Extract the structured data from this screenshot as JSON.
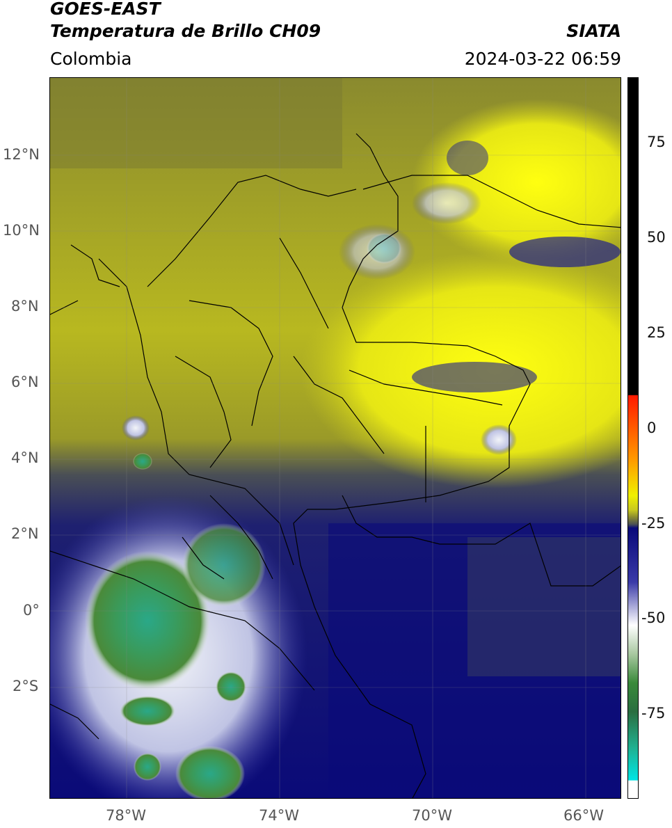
{
  "header": {
    "satellite": "GOES-EAST",
    "product": "Temperatura de Brillo CH09",
    "region": "Colombia",
    "source": "SIATA",
    "datetime": "2024-03-22 06:59"
  },
  "map": {
    "lat_labels": [
      "12°N",
      "10°N",
      "8°N",
      "6°N",
      "4°N",
      "2°N",
      "0°",
      "2°S"
    ],
    "lon_labels": [
      "78°W",
      "74°W",
      "70°W",
      "66°W"
    ]
  },
  "colorbar": {
    "tick_labels": [
      "75",
      "50",
      "25",
      "0",
      "-25",
      "-50",
      "-75"
    ],
    "colors": {
      "black": "#000000",
      "red": "#ff2000",
      "orange": "#ff9a00",
      "yellow": "#f2f200",
      "olive": "#8f8f30",
      "gray": "#4a4f55",
      "navy": "#00006e",
      "blue": "#3a3aa8",
      "white": "#ffffff",
      "green": "#3a8a3a",
      "darkgreen": "#2a6e2a",
      "teal": "#20b090",
      "cyan": "#00e5e5"
    }
  }
}
